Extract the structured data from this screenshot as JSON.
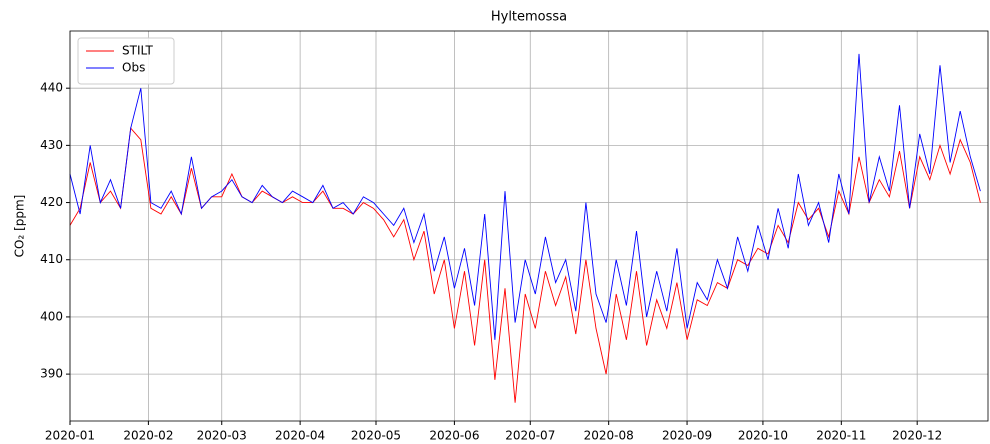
{
  "chart_data": {
    "type": "line",
    "title": "Hyltemossa",
    "ylabel": "CO₂  [ppm]",
    "x": [
      0,
      4,
      8,
      12,
      16,
      20,
      24,
      28,
      32,
      36,
      40,
      44,
      48,
      52,
      56,
      60,
      64,
      68,
      72,
      76,
      80,
      84,
      88,
      92,
      96,
      100,
      104,
      108,
      112,
      116,
      120,
      124,
      128,
      132,
      136,
      140,
      144,
      148,
      152,
      156,
      160,
      164,
      168,
      172,
      176,
      180,
      184,
      188,
      192,
      196,
      200,
      204,
      208,
      212,
      216,
      220,
      224,
      228,
      232,
      236,
      240,
      244,
      248,
      252,
      256,
      260,
      264,
      268,
      272,
      276,
      280,
      284,
      288,
      292,
      296,
      300,
      304,
      308,
      312,
      316,
      320,
      324,
      328,
      332,
      336,
      340,
      344,
      348,
      352,
      356,
      360
    ],
    "series": [
      {
        "name": "STILT",
        "color": "#ff0000",
        "values": [
          416,
          419,
          427,
          420,
          422,
          419,
          433,
          431,
          419,
          418,
          421,
          418,
          426,
          419,
          421,
          421,
          425,
          421,
          420,
          422,
          421,
          420,
          421,
          420,
          420,
          422,
          419,
          419,
          418,
          420,
          419,
          417,
          414,
          417,
          410,
          415,
          404,
          410,
          398,
          408,
          395,
          410,
          389,
          405,
          385,
          404,
          398,
          408,
          402,
          407,
          397,
          410,
          398,
          390,
          404,
          396,
          408,
          395,
          403,
          398,
          406,
          396,
          403,
          402,
          406,
          405,
          410,
          409,
          412,
          411,
          416,
          413,
          420,
          417,
          419,
          414,
          422,
          418,
          428,
          420,
          424,
          421,
          429,
          419,
          428,
          424,
          430,
          425,
          431,
          427,
          420
        ]
      },
      {
        "name": "Obs",
        "color": "#0000ff",
        "values": [
          425,
          418,
          430,
          420,
          424,
          419,
          433,
          440,
          420,
          419,
          422,
          418,
          428,
          419,
          421,
          422,
          424,
          421,
          420,
          423,
          421,
          420,
          422,
          421,
          420,
          423,
          419,
          420,
          418,
          421,
          420,
          418,
          416,
          419,
          413,
          418,
          408,
          414,
          405,
          412,
          402,
          418,
          396,
          422,
          399,
          410,
          404,
          414,
          406,
          410,
          401,
          420,
          404,
          399,
          410,
          402,
          415,
          400,
          408,
          401,
          412,
          398,
          406,
          403,
          410,
          405,
          414,
          408,
          416,
          410,
          419,
          412,
          425,
          416,
          420,
          413,
          425,
          418,
          446,
          420,
          428,
          422,
          437,
          419,
          432,
          425,
          444,
          427,
          436,
          428,
          422
        ]
      }
    ],
    "xlim": [
      0,
      363
    ],
    "xticks": [
      {
        "value": 0,
        "label": "2020-01"
      },
      {
        "value": 31,
        "label": "2020-02"
      },
      {
        "value": 60,
        "label": "2020-03"
      },
      {
        "value": 91,
        "label": "2020-04"
      },
      {
        "value": 121,
        "label": "2020-05"
      },
      {
        "value": 152,
        "label": "2020-06"
      },
      {
        "value": 182,
        "label": "2020-07"
      },
      {
        "value": 213,
        "label": "2020-08"
      },
      {
        "value": 244,
        "label": "2020-09"
      },
      {
        "value": 274,
        "label": "2020-10"
      },
      {
        "value": 305,
        "label": "2020-11"
      },
      {
        "value": 335,
        "label": "2020-12"
      }
    ],
    "ylim": [
      381.8,
      450
    ],
    "yticks": [
      390,
      400,
      410,
      420,
      430,
      440
    ],
    "grid": true,
    "legend": "upper left"
  }
}
